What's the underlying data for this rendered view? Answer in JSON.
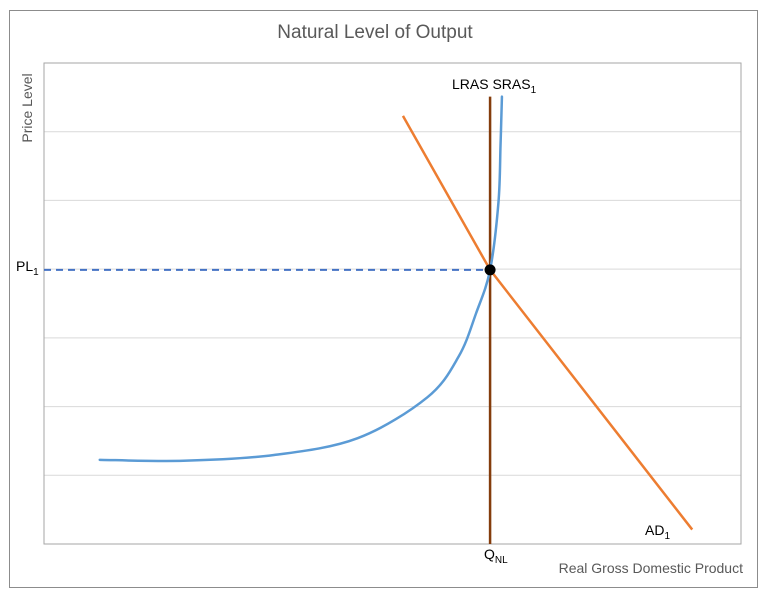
{
  "chart_data": {
    "type": "line",
    "title": "Natural Level of Output",
    "xlabel": "Real Gross Domestic Product",
    "ylabel": "Price Level",
    "grid": true,
    "gridlines": 6,
    "xlim": [
      0,
      100
    ],
    "ylim": [
      0,
      100
    ],
    "series": [
      {
        "name": "LRAS",
        "color": "#843C0C",
        "x": [
          64,
          64
        ],
        "y": [
          0,
          93
        ]
      },
      {
        "name": "SRAS1",
        "color": "#5B9BD5",
        "x": [
          8,
          20,
          33,
          45,
          55,
          59.5,
          62,
          64,
          65.2,
          65.5,
          65.7
        ],
        "y": [
          17.5,
          17.3,
          18.5,
          22,
          30.5,
          39,
          48,
          57,
          71,
          83,
          93
        ]
      },
      {
        "name": "AD1",
        "color": "#ED7D31",
        "x": [
          51.5,
          64,
          93
        ],
        "y": [
          89,
          57,
          3
        ]
      },
      {
        "name": "PL1",
        "color": "#4472C4",
        "x": [
          0,
          64
        ],
        "y": [
          57,
          57
        ]
      }
    ],
    "equilibrium": {
      "x": 64,
      "y": 57
    },
    "labels": {
      "lras_sras": "LRAS SRAS",
      "lras_sras_sub": "1",
      "pl": "PL",
      "pl_sub": "1",
      "q": "Q",
      "q_sub": "NL",
      "ad": "AD",
      "ad_sub": "1"
    },
    "colors": {
      "grid": "#d9d9d9",
      "axis": "#a6a6a6",
      "text": "#595959",
      "marker": "#000000"
    }
  }
}
